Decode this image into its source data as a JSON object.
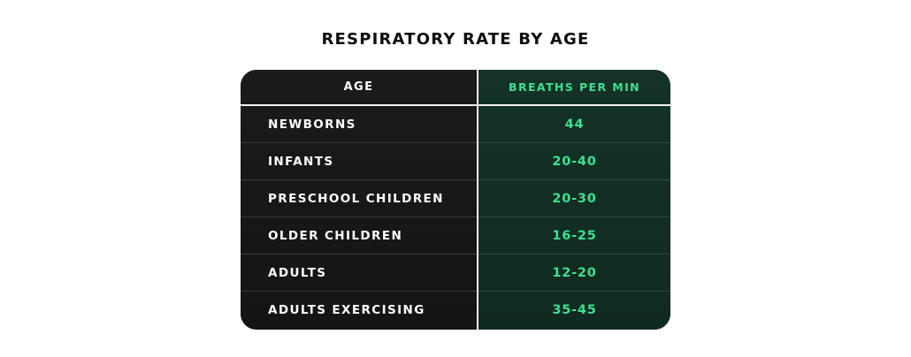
{
  "chart_data": {
    "type": "table",
    "title": "RESPIRATORY RATE BY AGE",
    "columns": [
      "AGE",
      "BREATHS PER MIN"
    ],
    "rows": [
      {
        "age": "NEWBORNS",
        "breaths": "44"
      },
      {
        "age": "INFANTS",
        "breaths": "20-40"
      },
      {
        "age": "PRESCHOOL CHILDREN",
        "breaths": "20-30"
      },
      {
        "age": "OLDER CHILDREN",
        "breaths": "16-25"
      },
      {
        "age": "ADULTS",
        "breaths": "12-20"
      },
      {
        "age": "ADULTS EXERCISING",
        "breaths": "35-45"
      }
    ]
  },
  "colors": {
    "title": "#0d0d0d",
    "left_column_bg": "#161616",
    "right_column_bg": "#12302a",
    "accent_green": "#3ee08f",
    "text_white": "#ffffff"
  }
}
